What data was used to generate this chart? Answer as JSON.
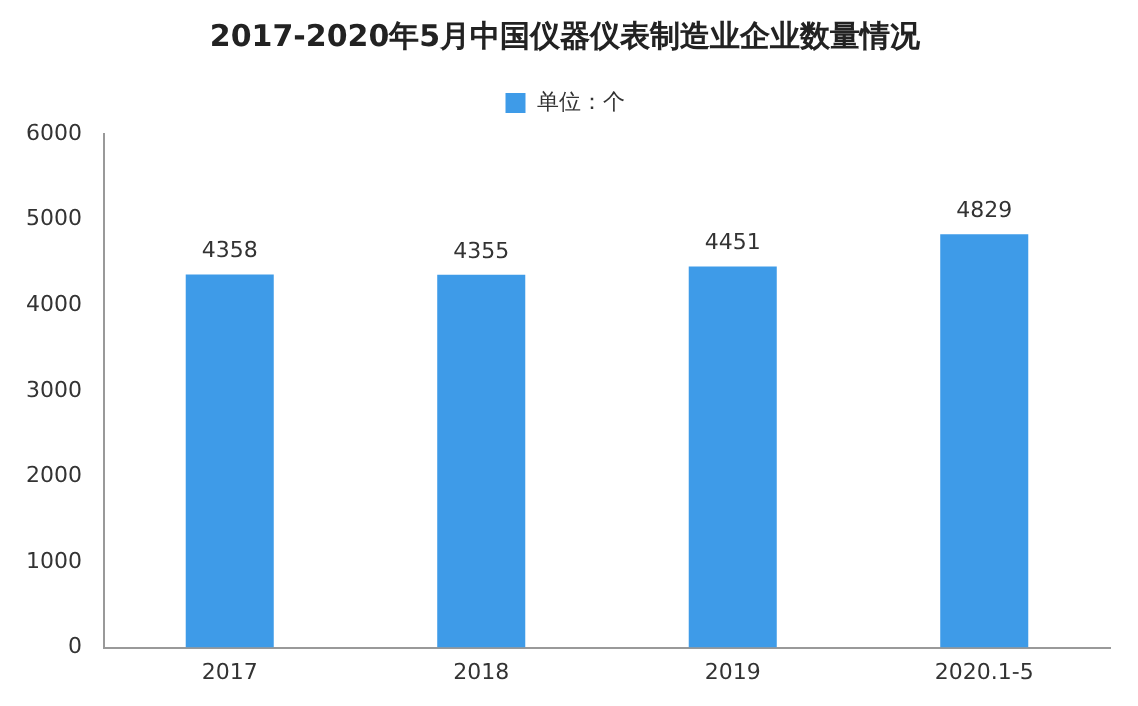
{
  "chart_data": {
    "type": "bar",
    "title": "2017-2020年5月中国仪器仪表制造业企业数量情况",
    "categories": [
      "2017",
      "2018",
      "2019",
      "2020.1-5"
    ],
    "series": [
      {
        "name": "单位：个",
        "color": "#3e9be8",
        "values": [
          4358,
          4355,
          4451,
          4829
        ]
      }
    ],
    "ylim": [
      0,
      6000
    ],
    "yticks": [
      0,
      1000,
      2000,
      3000,
      4000,
      5000,
      6000
    ],
    "grid": false,
    "legend": "top",
    "data_labels": true
  }
}
